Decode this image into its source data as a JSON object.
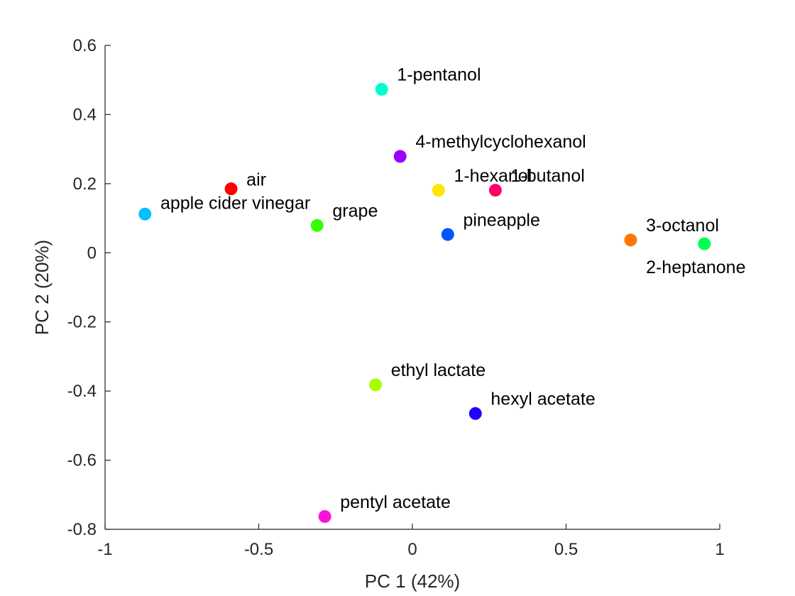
{
  "chart_data": {
    "type": "scatter",
    "title": "",
    "xlabel": "PC 1 (42%)",
    "ylabel": "PC 2 (20%)",
    "xlim": [
      -1,
      1
    ],
    "ylim": [
      -0.8,
      0.6
    ],
    "xticks": [
      -1,
      -0.5,
      0,
      0.5,
      1
    ],
    "xtick_labels": [
      "-1",
      "-0.5",
      "0",
      "0.5",
      "1"
    ],
    "yticks": [
      -0.8,
      -0.6,
      -0.4,
      -0.2,
      0,
      0.2,
      0.4,
      0.6
    ],
    "ytick_labels": [
      "-0.8",
      "-0.6",
      "-0.4",
      "-0.2",
      "0",
      "0.2",
      "0.4",
      "0.6"
    ],
    "grid": false,
    "points": [
      {
        "label": "air",
        "x": -0.59,
        "y": 0.185,
        "color": "#ff0000",
        "label_offset": [
          0.05,
          0.01
        ]
      },
      {
        "label": "apple cider vinegar",
        "x": -0.87,
        "y": 0.112,
        "color": "#00bfff",
        "label_offset": [
          0.05,
          0.015
        ]
      },
      {
        "label": "grape",
        "x": -0.31,
        "y": 0.079,
        "color": "#33ff00",
        "label_offset": [
          0.05,
          0.025
        ]
      },
      {
        "label": "1-pentanol",
        "x": -0.1,
        "y": 0.473,
        "color": "#00ffcc",
        "label_offset": [
          0.05,
          0.025
        ]
      },
      {
        "label": "4-methylcyclohexanol",
        "x": -0.04,
        "y": 0.279,
        "color": "#9900ff",
        "label_offset": [
          0.05,
          0.025
        ]
      },
      {
        "label": "1-hexanol",
        "x": 0.085,
        "y": 0.181,
        "color": "#ffe500",
        "label_offset": [
          0.05,
          0.025
        ]
      },
      {
        "label": "1-butanol",
        "x": 0.27,
        "y": 0.181,
        "color": "#ff0066",
        "label_offset": [
          0.05,
          0.025
        ]
      },
      {
        "label": "pineapple",
        "x": 0.115,
        "y": 0.053,
        "color": "#0055ff",
        "label_offset": [
          0.05,
          0.025
        ]
      },
      {
        "label": "3-octanol",
        "x": 0.71,
        "y": 0.037,
        "color": "#ff7700",
        "label_offset": [
          0.05,
          0.025
        ]
      },
      {
        "label": "2-heptanone",
        "x": 0.95,
        "y": 0.026,
        "color": "#00ff55",
        "label_offset": [
          -0.19,
          -0.085
        ]
      },
      {
        "label": "ethyl lactate",
        "x": -0.12,
        "y": -0.382,
        "color": "#a6ff00",
        "label_offset": [
          0.05,
          0.025
        ]
      },
      {
        "label": "hexyl acetate",
        "x": 0.205,
        "y": -0.465,
        "color": "#2200ff",
        "label_offset": [
          0.05,
          0.025
        ]
      },
      {
        "label": "pentyl acetate",
        "x": -0.285,
        "y": -0.763,
        "color": "#ff11dd",
        "label_offset": [
          0.05,
          0.025
        ]
      }
    ]
  }
}
